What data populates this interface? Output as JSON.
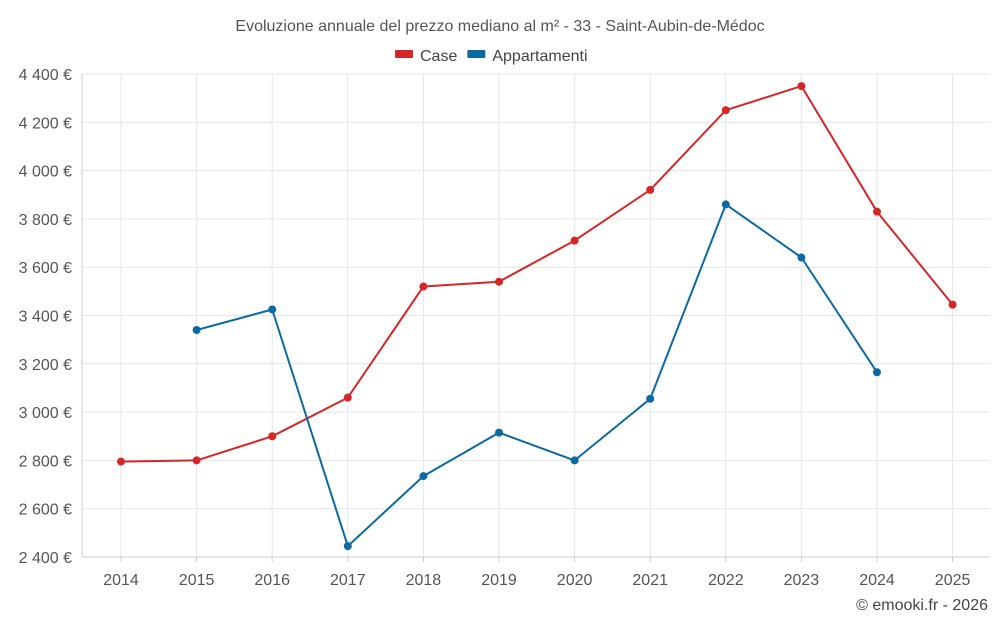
{
  "chart_data": {
    "type": "line",
    "title": "Evoluzione annuale del prezzo mediano al m² - 33 - Saint-Aubin-de-Médoc",
    "categories": [
      "2014",
      "2015",
      "2016",
      "2017",
      "2018",
      "2019",
      "2020",
      "2021",
      "2022",
      "2023",
      "2024",
      "2025"
    ],
    "ylim": [
      2400,
      4400
    ],
    "yticks": [
      2400,
      2600,
      2800,
      3000,
      3200,
      3400,
      3600,
      3800,
      4000,
      4200,
      4400
    ],
    "ytick_labels": [
      "2 400 €",
      "2 600 €",
      "2 800 €",
      "3 000 €",
      "3 200 €",
      "3 400 €",
      "3 600 €",
      "3 800 €",
      "4 000 €",
      "4 200 €",
      "4 400 €"
    ],
    "grid": true,
    "legend_position": "top-center",
    "series": [
      {
        "name": "Case",
        "color": "#d62728",
        "values": [
          2795,
          2800,
          2900,
          3060,
          3520,
          3540,
          3710,
          3920,
          4250,
          4350,
          3830,
          3445
        ]
      },
      {
        "name": "Appartamenti",
        "color": "#0b6aa2",
        "values": [
          null,
          3340,
          3425,
          2445,
          2735,
          2915,
          2800,
          3055,
          3860,
          3640,
          3165,
          null
        ]
      }
    ],
    "credit": "© emooki.fr - 2026"
  }
}
